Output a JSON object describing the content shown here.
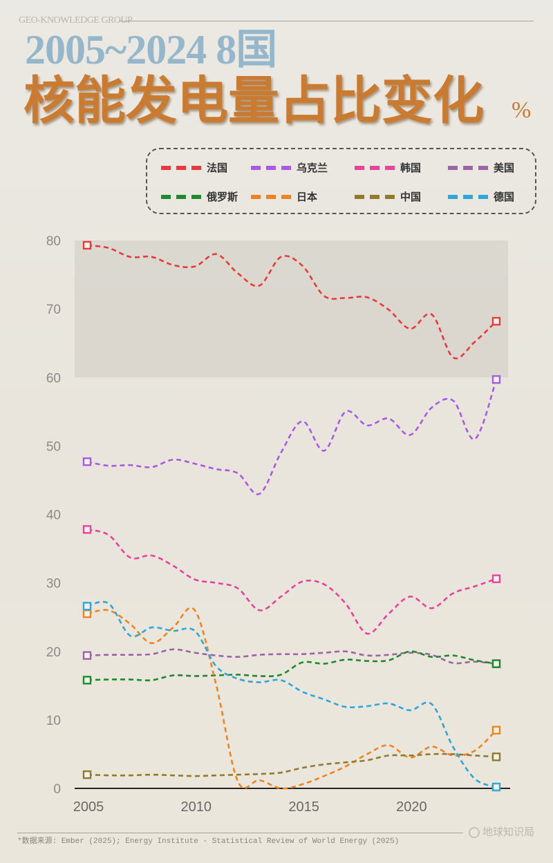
{
  "brand": "GEO-KNOWLEDGE GROUP",
  "subtitle": "2005~2024  8国",
  "title": "核能发电量占比变化",
  "unit": "%",
  "source": "*数据来源: Ember (2025); Energy Institute - Statistical Review of World Energy (2025)",
  "logo": "地球知识局",
  "chart_data": {
    "type": "line",
    "title": "2005~2024 8国核能发电量占比变化 %",
    "xlabel": "",
    "ylabel": "%",
    "x": [
      2005,
      2006,
      2007,
      2008,
      2009,
      2010,
      2011,
      2012,
      2013,
      2014,
      2015,
      2016,
      2017,
      2018,
      2019,
      2020,
      2021,
      2022,
      2023,
      2024
    ],
    "xticks": [
      "2005",
      "2010",
      "2015",
      "2020"
    ],
    "yticks": [
      "0",
      "10",
      "20",
      "30",
      "40",
      "50",
      "60",
      "70",
      "80"
    ],
    "ylim": [
      0,
      80
    ],
    "highlight_band": [
      60,
      80
    ],
    "legend": "top-right",
    "series": [
      {
        "name": "法国",
        "color": "#e8393c",
        "values": [
          79.3,
          78.9,
          77.6,
          77.6,
          76.4,
          76.2,
          78.0,
          75.2,
          73.4,
          77.6,
          76.3,
          71.9,
          71.6,
          71.7,
          69.9,
          67.1,
          69.2,
          62.9,
          65.2,
          68.2
        ]
      },
      {
        "name": "乌克兰",
        "color": "#a65ae6",
        "values": [
          47.7,
          47.1,
          47.2,
          46.9,
          48.0,
          47.4,
          46.6,
          46.0,
          43.0,
          49.0,
          53.6,
          49.3,
          55.0,
          53.0,
          54.0,
          51.6,
          55.6,
          56.6,
          51.0,
          59.7
        ]
      },
      {
        "name": "韩国",
        "color": "#e8429a",
        "values": [
          37.8,
          37.0,
          33.7,
          34.0,
          32.5,
          30.5,
          30.0,
          29.2,
          26.0,
          28.0,
          30.2,
          29.8,
          27.0,
          22.6,
          25.5,
          28.0,
          26.3,
          28.5,
          29.5,
          30.6
        ]
      },
      {
        "name": "美国",
        "color": "#9a64a6",
        "values": [
          19.4,
          19.5,
          19.5,
          19.6,
          20.3,
          19.8,
          19.4,
          19.2,
          19.5,
          19.6,
          19.6,
          19.8,
          20.0,
          19.4,
          19.5,
          19.8,
          19.5,
          18.3,
          18.5,
          18.2
        ]
      },
      {
        "name": "俄罗斯",
        "color": "#1d8a2c",
        "values": [
          15.8,
          15.9,
          15.9,
          15.8,
          16.5,
          16.4,
          16.5,
          16.6,
          16.4,
          16.6,
          18.4,
          18.2,
          18.8,
          18.6,
          18.7,
          20.0,
          19.2,
          19.4,
          18.7,
          18.2
        ]
      },
      {
        "name": "日本",
        "color": "#f08320",
        "values": [
          25.5,
          26.0,
          24.0,
          21.2,
          23.5,
          26.0,
          15.0,
          1.0,
          1.2,
          0.0,
          0.6,
          1.8,
          3.2,
          5.0,
          6.3,
          4.5,
          6.1,
          4.8,
          5.5,
          8.5
        ]
      },
      {
        "name": "中国",
        "color": "#8f7a30",
        "values": [
          2.0,
          1.9,
          1.9,
          2.0,
          1.9,
          1.8,
          1.9,
          2.0,
          2.1,
          2.3,
          3.0,
          3.5,
          3.8,
          4.1,
          4.8,
          4.8,
          5.0,
          5.0,
          4.8,
          4.6
        ]
      },
      {
        "name": "德国",
        "color": "#2ea6d8",
        "values": [
          26.6,
          27.0,
          22.3,
          23.5,
          23.0,
          23.0,
          17.8,
          16.0,
          15.5,
          15.8,
          14.1,
          13.0,
          11.9,
          12.0,
          12.4,
          11.4,
          12.3,
          6.0,
          1.4,
          0.2
        ]
      }
    ]
  }
}
